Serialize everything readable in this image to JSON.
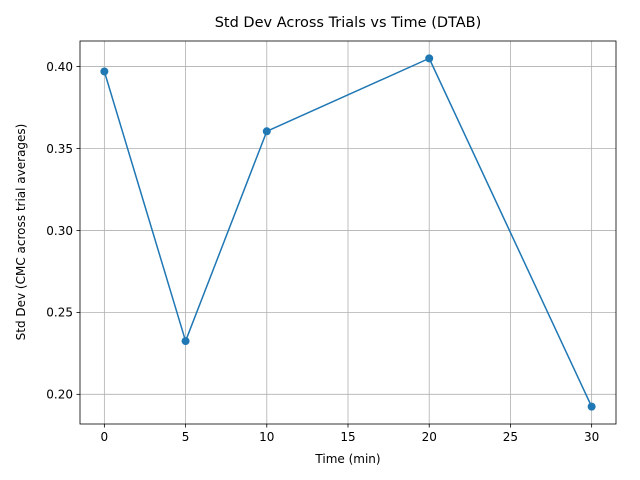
{
  "chart_data": {
    "type": "line",
    "title": "Std Dev Across Trials vs Time (DTAB)",
    "xlabel": "Time (min)",
    "ylabel": "Std Dev (CMC across trial averages)",
    "x": [
      0,
      5,
      10,
      20,
      30
    ],
    "series": [
      {
        "values": [
          0.397,
          0.2325,
          0.3605,
          0.405,
          0.1925
        ],
        "color": "#1f77b4",
        "marker": "circle"
      }
    ],
    "xlim": [
      -1.5,
      31.5
    ],
    "ylim": [
      0.1819,
      0.4156
    ],
    "xticks": [
      0,
      5,
      10,
      15,
      20,
      25,
      30
    ],
    "xtick_labels": [
      "0",
      "5",
      "10",
      "15",
      "20",
      "25",
      "30"
    ],
    "yticks": [
      0.2,
      0.25,
      0.3,
      0.35,
      0.4
    ],
    "ytick_labels": [
      "0.20",
      "0.25",
      "0.30",
      "0.35",
      "0.40"
    ],
    "grid": true,
    "legend": "none"
  }
}
